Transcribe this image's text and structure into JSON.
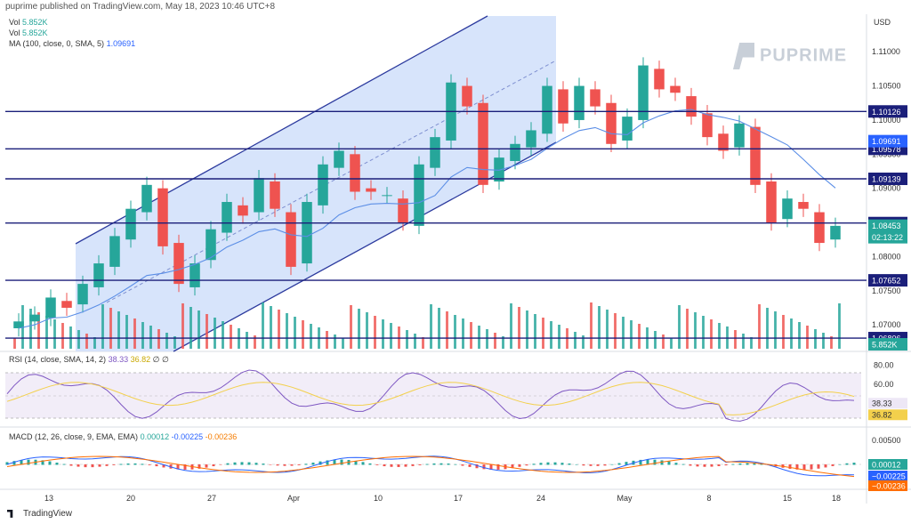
{
  "header": {
    "published": "puprime published on TradingView.com, May 18, 2023 10:46 UTC+8"
  },
  "legend": {
    "vol1": "Vol",
    "vol1_val": "5.852K",
    "vol2": "Vol",
    "vol2_val": "5.852K",
    "ma": "MA (100, close, 0, SMA, 5)",
    "ma_val": "1.09691"
  },
  "logo": {
    "text": "PUPRIME"
  },
  "footer": {
    "brand": "TradingView"
  },
  "colors": {
    "up": "#26a69a",
    "down": "#ef5350",
    "channel": "#2c3a9e",
    "level": "#1b1f7a",
    "ma": "#5b8ee6",
    "rsi": "#7e57c2",
    "rsi_ma": "#f3d04c",
    "macd": "#2962ff",
    "signal": "#ff6d00"
  },
  "chart_data": [
    {
      "type": "candlestick",
      "currency": "USD",
      "y_ticks": [
        "1.11000",
        "1.10500",
        "1.10000",
        "1.09500",
        "1.09000",
        "1.08500",
        "1.08000",
        "1.07500",
        "1.07000"
      ],
      "ylim": [
        1.0665,
        1.1155
      ],
      "x_ticks": [
        "13",
        "20",
        "27",
        "Apr",
        "10",
        "17",
        "24",
        "May",
        "8",
        "15",
        "18"
      ],
      "horizontal_levels": [
        "1.10126",
        "1.09578",
        "1.09139",
        "1.08491",
        "1.07652",
        "1.06806"
      ],
      "badges": {
        "ma": "1.09691",
        "price": "1.08453",
        "countdown": "02:13:22",
        "volume": "5.852K"
      },
      "price_series": [
        [
          1.0705,
          1.0705
        ],
        [
          1.0715,
          1.071
        ],
        [
          1.074,
          1.0735
        ],
        [
          1.0725,
          1.073
        ],
        [
          1.076,
          1.0755
        ],
        [
          1.079,
          1.0785
        ],
        [
          1.083,
          1.0825
        ],
        [
          1.087,
          1.0865
        ],
        [
          1.0905,
          1.09
        ],
        [
          1.0815,
          1.082
        ],
        [
          1.076,
          1.0755
        ],
        [
          1.079,
          1.0795
        ],
        [
          1.084,
          1.0835
        ],
        [
          1.088,
          1.0875
        ],
        [
          1.086,
          1.0865
        ],
        [
          1.0915,
          1.091
        ],
        [
          1.087,
          1.0865
        ],
        [
          1.0785,
          1.079
        ],
        [
          1.088,
          1.0875
        ],
        [
          1.0935,
          1.093
        ],
        [
          1.0955,
          1.095
        ],
        [
          1.0895,
          1.09
        ],
        [
          1.0895,
          1.089
        ],
        [
          1.089,
          1.0885
        ],
        [
          1.085,
          1.0845
        ],
        [
          1.0935,
          1.093
        ],
        [
          1.0975,
          1.097
        ],
        [
          1.1055,
          1.105
        ],
        [
          1.102,
          1.1025
        ],
        [
          1.0905,
          1.091
        ],
        [
          1.0945,
          1.094
        ],
        [
          1.0965,
          1.096
        ],
        [
          1.0985,
          1.098
        ],
        [
          1.105,
          1.1045
        ],
        [
          1.0995,
          1.1
        ],
        [
          1.105,
          1.1045
        ],
        [
          1.102,
          1.1025
        ],
        [
          1.0965,
          1.097
        ],
        [
          1.1005,
          1.1
        ],
        [
          1.108,
          1.1075
        ],
        [
          1.1045,
          1.105
        ],
        [
          1.104,
          1.1035
        ],
        [
          1.1005,
          1.101
        ],
        [
          1.0975,
          1.098
        ],
        [
          1.0955,
          1.096
        ],
        [
          1.0995,
          1.099
        ],
        [
          1.0905,
          1.091
        ],
        [
          1.085,
          1.0855
        ],
        [
          1.0885,
          1.088
        ],
        [
          1.087,
          1.0865
        ],
        [
          1.082,
          1.0825
        ],
        [
          1.0845,
          1.084
        ]
      ]
    },
    {
      "type": "line",
      "label": "RSI (14, close, SMA, 14, 2)",
      "legend_values": [
        "38.33",
        "36.82",
        "∅",
        "∅"
      ],
      "y_ticks": [
        "80.00",
        "60.00",
        "40.00"
      ],
      "ylim": [
        20,
        85
      ],
      "badges": {
        "rsi": "38.33",
        "rsi_ma": "36.82"
      }
    },
    {
      "type": "line",
      "label": "MACD (12, 26, close, 9, EMA, EMA)",
      "legend_values": [
        "0.00012",
        "-0.00225",
        "-0.00236"
      ],
      "y_ticks": [
        "0.00500",
        "0.00000"
      ],
      "badges": {
        "hist": "0.00012",
        "macd": "−0.00225",
        "signal": "−0.00236"
      }
    }
  ]
}
